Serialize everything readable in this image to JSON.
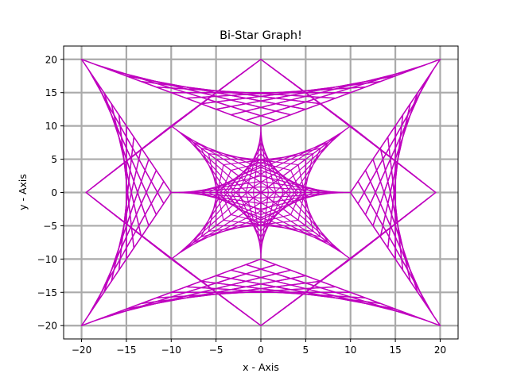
{
  "chart_data": {
    "type": "line",
    "title": "Bi-Star Graph!",
    "xlabel": "x - Axis",
    "ylabel": "y - Axis",
    "xlim": [
      -22,
      22
    ],
    "ylim": [
      -22,
      22
    ],
    "x_ticks": [
      -20,
      -15,
      -10,
      -5,
      0,
      5,
      10,
      15,
      20
    ],
    "y_ticks": [
      -20,
      -15,
      -10,
      -5,
      0,
      5,
      10,
      15,
      20
    ],
    "grid": true,
    "grid_color": "#aaaaaa",
    "line_color": "#bf00bf",
    "series": [
      {
        "description_kind": "string-art envelopes",
        "star_a": {
          "tips": [
            [
              -20,
              20
            ],
            [
              20,
              20
            ],
            [
              20,
              -20
            ],
            [
              -20,
              -20
            ]
          ],
          "inner_points": [
            [
              0,
              10
            ],
            [
              10,
              0
            ],
            [
              0,
              -10
            ],
            [
              -10,
              0
            ]
          ]
        },
        "star_b": {
          "tips": [
            [
              0,
              20
            ],
            [
              19.5,
              0
            ],
            [
              0,
              -20
            ],
            [
              -19.5,
              0
            ]
          ],
          "inner_points": [
            [
              10,
              10
            ],
            [
              10,
              -10
            ],
            [
              -10,
              -10
            ],
            [
              -10,
              10
            ]
          ]
        },
        "lines_per_envelope": 12
      }
    ]
  }
}
